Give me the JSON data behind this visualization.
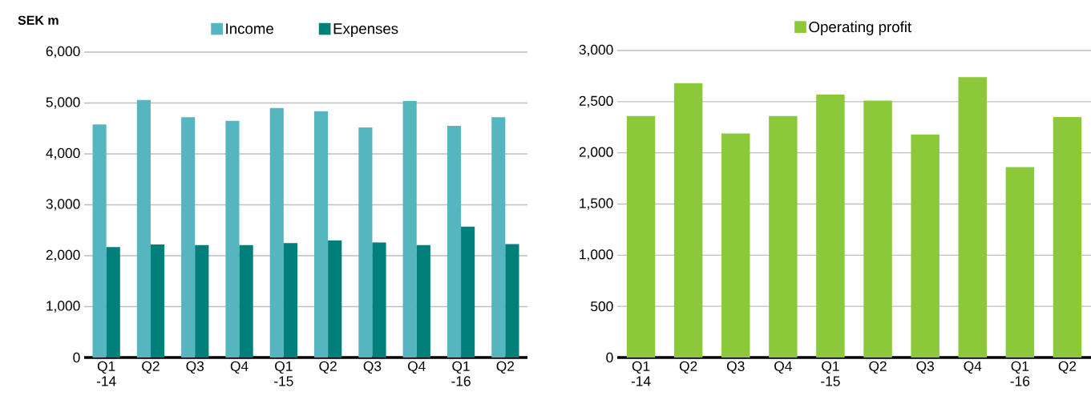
{
  "chart_data": [
    {
      "type": "bar",
      "ylabel": "SEK m",
      "categories": [
        "Q1 -14",
        "Q2",
        "Q3",
        "Q4",
        "Q1 -15",
        "Q2",
        "Q3",
        "Q4",
        "Q1 -16",
        "Q2"
      ],
      "series": [
        {
          "name": "Income",
          "color": "#56b6c0",
          "values": [
            4580,
            5060,
            4720,
            4650,
            4900,
            4840,
            4520,
            5040,
            4550,
            4720
          ]
        },
        {
          "name": "Expenses",
          "color": "#007f7b",
          "values": [
            2170,
            2220,
            2210,
            2210,
            2250,
            2300,
            2260,
            2210,
            2570,
            2230
          ]
        }
      ],
      "ylim": [
        0,
        6000
      ],
      "yticks": [
        0,
        {
          "value": 1000,
          "label": "1,000"
        },
        {
          "value": 2000,
          "label": "2,000"
        },
        {
          "value": 3000,
          "label": "3,000"
        },
        {
          "value": 4000,
          "label": "4,000"
        },
        {
          "value": 5000,
          "label": "5,000"
        },
        {
          "value": 6000,
          "label": "6,000"
        }
      ],
      "grid": "y",
      "legend": "top"
    },
    {
      "type": "bar",
      "categories": [
        "Q1 -14",
        "Q2",
        "Q3",
        "Q4",
        "Q1 -15",
        "Q2",
        "Q3",
        "Q4",
        "Q1 -16",
        "Q2"
      ],
      "series": [
        {
          "name": "Operating profit",
          "color": "#8bc93a",
          "values": [
            2360,
            2680,
            2190,
            2360,
            2570,
            2510,
            2180,
            2740,
            1860,
            2350
          ]
        }
      ],
      "ylim": [
        0,
        3000
      ],
      "yticks": [
        0,
        500,
        {
          "value": 1000,
          "label": "1,000"
        },
        {
          "value": 1500,
          "label": "1,500"
        },
        {
          "value": 2000,
          "label": "2,000"
        },
        {
          "value": 2500,
          "label": "2,500"
        },
        {
          "value": 3000,
          "label": "3,000"
        }
      ],
      "grid": "y",
      "legend": "top"
    }
  ]
}
